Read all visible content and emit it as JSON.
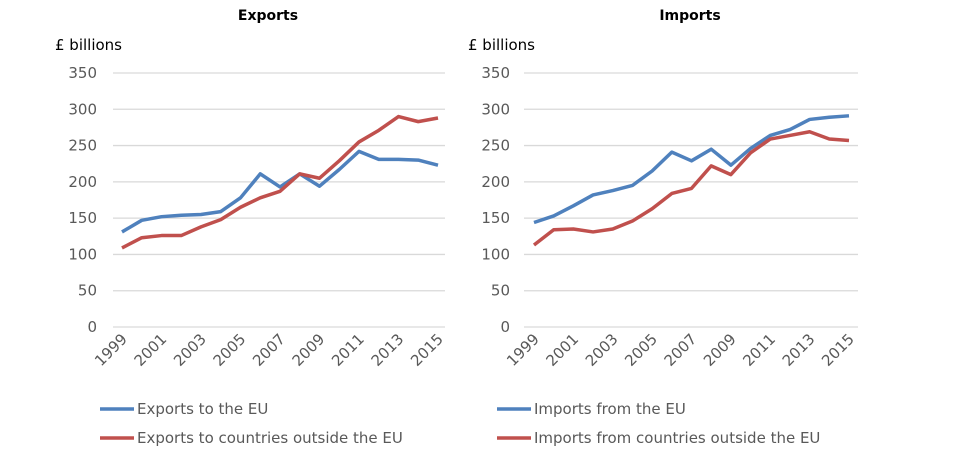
{
  "chart_data": [
    {
      "type": "line",
      "title": "Exports",
      "ylabel": "£ billions",
      "xlabel": "",
      "ylim": [
        0,
        350
      ],
      "yticks": [
        0,
        50,
        100,
        150,
        200,
        250,
        300,
        350
      ],
      "x": [
        1999,
        2000,
        2001,
        2002,
        2003,
        2004,
        2005,
        2006,
        2007,
        2008,
        2009,
        2010,
        2011,
        2012,
        2013,
        2014,
        2015
      ],
      "xtick_labels": [
        "1999",
        "2001",
        "2003",
        "2005",
        "2007",
        "2009",
        "2011",
        "2013",
        "2015"
      ],
      "grid": true,
      "legend": "bottom",
      "series": [
        {
          "name": "Exports to the EU",
          "color": "#4f81bd",
          "values": [
            131,
            147,
            152,
            154,
            155,
            159,
            178,
            211,
            193,
            211,
            194,
            217,
            242,
            231,
            231,
            230,
            223
          ]
        },
        {
          "name": "Exports to countries outside the EU",
          "color": "#c0504d",
          "values": [
            109,
            123,
            126,
            126,
            138,
            148,
            165,
            178,
            187,
            211,
            205,
            229,
            255,
            271,
            290,
            283,
            288
          ]
        }
      ]
    },
    {
      "type": "line",
      "title": "Imports",
      "ylabel": "£ billions",
      "xlabel": "",
      "ylim": [
        0,
        350
      ],
      "yticks": [
        0,
        50,
        100,
        150,
        200,
        250,
        300,
        350
      ],
      "x": [
        1999,
        2000,
        2001,
        2002,
        2003,
        2004,
        2005,
        2006,
        2007,
        2008,
        2009,
        2010,
        2011,
        2012,
        2013,
        2014,
        2015
      ],
      "xtick_labels": [
        "1999",
        "2001",
        "2003",
        "2005",
        "2007",
        "2009",
        "2011",
        "2013",
        "2015"
      ],
      "grid": true,
      "legend": "bottom",
      "series": [
        {
          "name": "Imports from the EU",
          "color": "#4f81bd",
          "values": [
            144,
            153,
            167,
            182,
            188,
            195,
            215,
            241,
            229,
            245,
            223,
            246,
            264,
            272,
            286,
            289,
            291
          ]
        },
        {
          "name": "Imports from countries outside the EU",
          "color": "#c0504d",
          "values": [
            113,
            134,
            135,
            131,
            135,
            146,
            163,
            184,
            191,
            222,
            210,
            240,
            259,
            264,
            269,
            259,
            257
          ]
        }
      ]
    }
  ]
}
